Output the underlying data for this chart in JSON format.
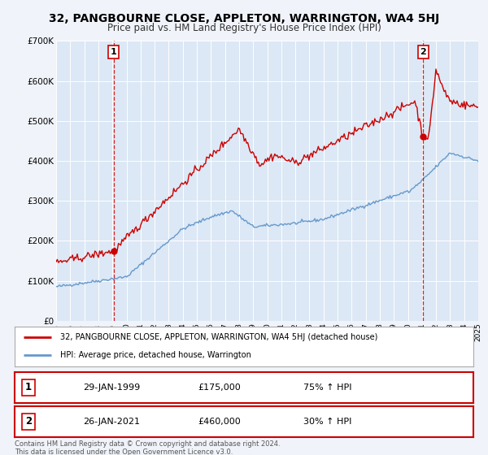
{
  "title": "32, PANGBOURNE CLOSE, APPLETON, WARRINGTON, WA4 5HJ",
  "subtitle": "Price paid vs. HM Land Registry's House Price Index (HPI)",
  "background_color": "#f0f4fa",
  "plot_background": "#dce8f5",
  "legend_line1": "32, PANGBOURNE CLOSE, APPLETON, WARRINGTON, WA4 5HJ (detached house)",
  "legend_line2": "HPI: Average price, detached house, Warrington",
  "red_color": "#cc0000",
  "blue_color": "#6699cc",
  "transaction1_date": "29-JAN-1999",
  "transaction1_price": "£175,000",
  "transaction1_hpi": "75% ↑ HPI",
  "transaction1_year": 1999.08,
  "transaction1_value": 175000,
  "transaction2_date": "26-JAN-2021",
  "transaction2_price": "£460,000",
  "transaction2_hpi": "30% ↑ HPI",
  "transaction2_year": 2021.08,
  "transaction2_value": 460000,
  "ylim_max": 700000,
  "xmin": 1995,
  "xmax": 2025,
  "footer": "Contains HM Land Registry data © Crown copyright and database right 2024.\nThis data is licensed under the Open Government Licence v3.0.",
  "yticks": [
    0,
    100000,
    200000,
    300000,
    400000,
    500000,
    600000,
    700000
  ],
  "ytick_labels": [
    "£0",
    "£100K",
    "£200K",
    "£300K",
    "£400K",
    "£500K",
    "£600K",
    "£700K"
  ],
  "xticks": [
    1995,
    1996,
    1997,
    1998,
    1999,
    2000,
    2001,
    2002,
    2003,
    2004,
    2005,
    2006,
    2007,
    2008,
    2009,
    2010,
    2011,
    2012,
    2013,
    2014,
    2015,
    2016,
    2017,
    2018,
    2019,
    2020,
    2021,
    2022,
    2023,
    2024,
    2025
  ]
}
